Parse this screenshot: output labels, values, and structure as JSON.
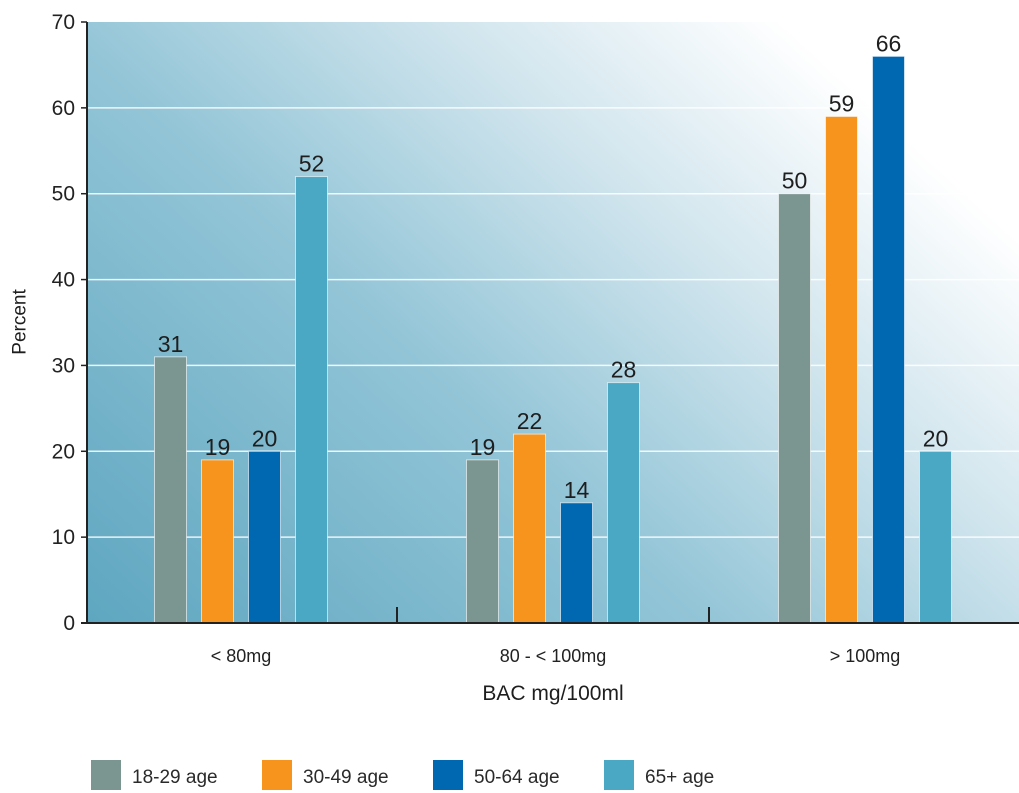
{
  "chart_data": {
    "type": "bar",
    "categories": [
      "< 80mg",
      "80 - < 100mg",
      "> 100mg"
    ],
    "series": [
      {
        "name": "18-29 age",
        "values": [
          31,
          19,
          50
        ],
        "color": "#7b9590"
      },
      {
        "name": "30-49 age",
        "values": [
          19,
          22,
          59
        ],
        "color": "#f7941d"
      },
      {
        "name": "50-64 age",
        "values": [
          20,
          14,
          66
        ],
        "color": "#0067b1"
      },
      {
        "name": "65+ age",
        "values": [
          52,
          28,
          20
        ],
        "color": "#4ba8c5"
      }
    ],
    "xlabel": "BAC mg/100ml",
    "ylabel": "Percent",
    "ylim": [
      0,
      70
    ],
    "yticks": [
      0,
      10,
      20,
      30,
      40,
      50,
      60,
      70
    ],
    "grid": true,
    "data_labels": true,
    "legend_position": "bottom"
  }
}
